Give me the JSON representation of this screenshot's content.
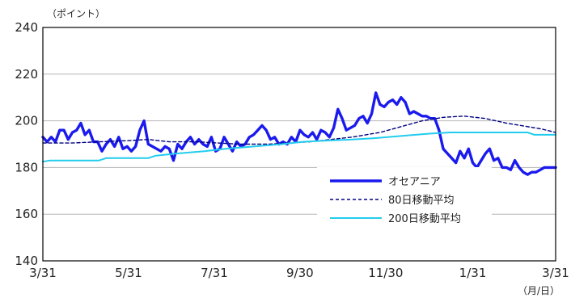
{
  "chart_data": {
    "type": "line",
    "y_unit_label": "（ポイント）",
    "x_unit_label": "（月/日）",
    "ylim": [
      140,
      240
    ],
    "yticks": [
      140,
      160,
      180,
      200,
      220,
      240
    ],
    "xlim": [
      0,
      365
    ],
    "x_ticks": [
      {
        "x": 0,
        "label": "3/31"
      },
      {
        "x": 61,
        "label": "5/31"
      },
      {
        "x": 122,
        "label": "7/31"
      },
      {
        "x": 183,
        "label": "9/30"
      },
      {
        "x": 244,
        "label": "11/30"
      },
      {
        "x": 306,
        "label": "1/31"
      },
      {
        "x": 365,
        "label": "3/31"
      }
    ],
    "grid": true,
    "legend_position": "lower-right",
    "colors": {
      "oceania": "#1a1aee",
      "ma80": "#000080",
      "ma200": "#22ccee"
    },
    "series": [
      {
        "name": "オセアニア",
        "style": "solid-thick",
        "points": [
          [
            0,
            193
          ],
          [
            3,
            191
          ],
          [
            6,
            193
          ],
          [
            9,
            191
          ],
          [
            12,
            196
          ],
          [
            15,
            196
          ],
          [
            18,
            192
          ],
          [
            21,
            195
          ],
          [
            24,
            196
          ],
          [
            27,
            199
          ],
          [
            30,
            194
          ],
          [
            33,
            196
          ],
          [
            36,
            191
          ],
          [
            39,
            191
          ],
          [
            42,
            187
          ],
          [
            45,
            190
          ],
          [
            48,
            192
          ],
          [
            51,
            189
          ],
          [
            54,
            193
          ],
          [
            57,
            188
          ],
          [
            60,
            189
          ],
          [
            63,
            187
          ],
          [
            66,
            189
          ],
          [
            69,
            196
          ],
          [
            72,
            200
          ],
          [
            75,
            190
          ],
          [
            78,
            189
          ],
          [
            81,
            188
          ],
          [
            84,
            187
          ],
          [
            87,
            189
          ],
          [
            90,
            188
          ],
          [
            93,
            183
          ],
          [
            96,
            190
          ],
          [
            99,
            188
          ],
          [
            102,
            191
          ],
          [
            105,
            193
          ],
          [
            108,
            190
          ],
          [
            111,
            192
          ],
          [
            114,
            190
          ],
          [
            117,
            189
          ],
          [
            120,
            193
          ],
          [
            123,
            187
          ],
          [
            126,
            188
          ],
          [
            129,
            193
          ],
          [
            132,
            190
          ],
          [
            135,
            187
          ],
          [
            138,
            191
          ],
          [
            141,
            189
          ],
          [
            144,
            190
          ],
          [
            147,
            193
          ],
          [
            150,
            194
          ],
          [
            153,
            196
          ],
          [
            156,
            198
          ],
          [
            159,
            196
          ],
          [
            162,
            192
          ],
          [
            165,
            193
          ],
          [
            168,
            190
          ],
          [
            171,
            191
          ],
          [
            174,
            190
          ],
          [
            177,
            193
          ],
          [
            180,
            191
          ],
          [
            183,
            196
          ],
          [
            186,
            194
          ],
          [
            189,
            193
          ],
          [
            192,
            195
          ],
          [
            195,
            192
          ],
          [
            198,
            196
          ],
          [
            201,
            195
          ],
          [
            204,
            193
          ],
          [
            207,
            197
          ],
          [
            210,
            205
          ],
          [
            213,
            201
          ],
          [
            216,
            196
          ],
          [
            219,
            197
          ],
          [
            222,
            198
          ],
          [
            225,
            201
          ],
          [
            228,
            202
          ],
          [
            231,
            199
          ],
          [
            234,
            203
          ],
          [
            237,
            212
          ],
          [
            240,
            207
          ],
          [
            243,
            206
          ],
          [
            246,
            208
          ],
          [
            249,
            209
          ],
          [
            252,
            207
          ],
          [
            255,
            210
          ],
          [
            258,
            208
          ],
          [
            261,
            203
          ],
          [
            264,
            204
          ],
          [
            267,
            203
          ],
          [
            270,
            202
          ],
          [
            273,
            202
          ],
          [
            276,
            201
          ],
          [
            279,
            201
          ],
          [
            282,
            196
          ],
          [
            285,
            188
          ],
          [
            288,
            186
          ],
          [
            291,
            184
          ],
          [
            294,
            182
          ],
          [
            297,
            187
          ],
          [
            300,
            184
          ],
          [
            303,
            188
          ],
          [
            306,
            182
          ],
          [
            309,
            180
          ],
          [
            312,
            183
          ],
          [
            315,
            186
          ],
          [
            318,
            188
          ],
          [
            321,
            183
          ],
          [
            324,
            184
          ],
          [
            327,
            180
          ],
          [
            330,
            180
          ],
          [
            333,
            179
          ],
          [
            336,
            183
          ],
          [
            339,
            180
          ],
          [
            342,
            178
          ],
          [
            345,
            177
          ],
          [
            348,
            178
          ],
          [
            351,
            178
          ],
          [
            354,
            179
          ],
          [
            357,
            180
          ],
          [
            360,
            180
          ],
          [
            363,
            180
          ],
          [
            365,
            180
          ]
        ]
      },
      {
        "name": "80日移動平均",
        "style": "dashed",
        "points": [
          [
            0,
            190.5
          ],
          [
            20,
            190.5
          ],
          [
            40,
            191
          ],
          [
            60,
            191.5
          ],
          [
            75,
            192
          ],
          [
            90,
            191
          ],
          [
            110,
            191
          ],
          [
            125,
            190.5
          ],
          [
            140,
            190
          ],
          [
            160,
            190
          ],
          [
            175,
            190.5
          ],
          [
            190,
            191
          ],
          [
            205,
            192
          ],
          [
            220,
            193
          ],
          [
            240,
            195
          ],
          [
            255,
            197.5
          ],
          [
            270,
            200
          ],
          [
            285,
            201.5
          ],
          [
            300,
            202
          ],
          [
            315,
            201
          ],
          [
            330,
            199
          ],
          [
            345,
            197.5
          ],
          [
            355,
            196.5
          ],
          [
            365,
            195
          ]
        ]
      },
      {
        "name": "200日移動平均",
        "style": "solid-thin",
        "points": [
          [
            0,
            182.5
          ],
          [
            5,
            183
          ],
          [
            40,
            183
          ],
          [
            45,
            184
          ],
          [
            75,
            184
          ],
          [
            80,
            185
          ],
          [
            95,
            186
          ],
          [
            115,
            187
          ],
          [
            130,
            188
          ],
          [
            150,
            189
          ],
          [
            170,
            190
          ],
          [
            185,
            191
          ],
          [
            200,
            191.5
          ],
          [
            220,
            192
          ],
          [
            235,
            192.5
          ],
          [
            255,
            193.5
          ],
          [
            275,
            194.5
          ],
          [
            290,
            195
          ],
          [
            345,
            195
          ],
          [
            350,
            194
          ],
          [
            365,
            194
          ]
        ]
      }
    ]
  }
}
